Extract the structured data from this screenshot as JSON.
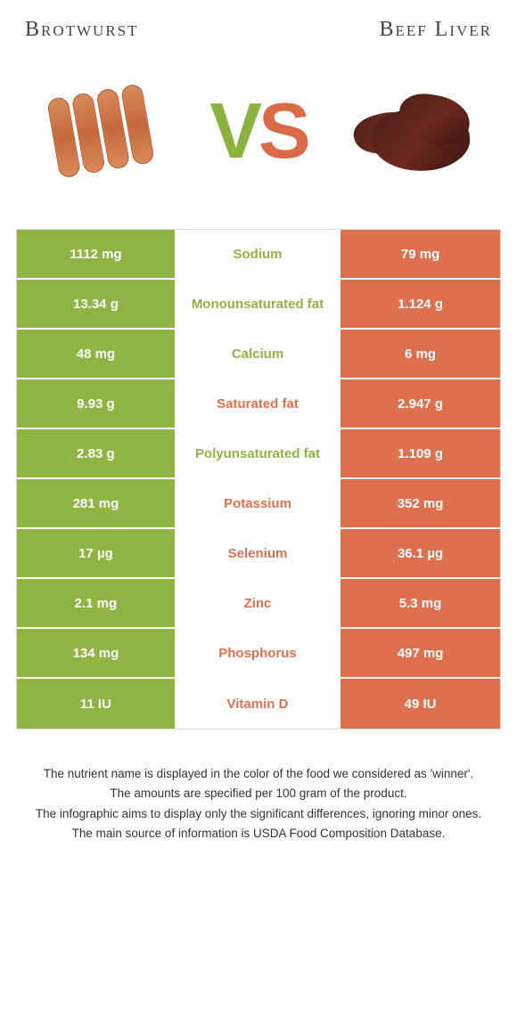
{
  "colors": {
    "green": "#8fb444",
    "orange": "#dd714f",
    "mid_green_text": "#8fb444",
    "mid_orange_text": "#dd714f"
  },
  "food_a": {
    "title": "Brotwurst"
  },
  "food_b": {
    "title": "Beef Liver"
  },
  "vs": {
    "v": "V",
    "s": "S"
  },
  "rows": [
    {
      "nutrient": "Sodium",
      "a": "1112 mg",
      "b": "79 mg",
      "winner": "a"
    },
    {
      "nutrient": "Monounsaturated fat",
      "a": "13.34 g",
      "b": "1.124 g",
      "winner": "a"
    },
    {
      "nutrient": "Calcium",
      "a": "48 mg",
      "b": "6 mg",
      "winner": "a"
    },
    {
      "nutrient": "Saturated fat",
      "a": "9.93 g",
      "b": "2.947 g",
      "winner": "b"
    },
    {
      "nutrient": "Polyunsaturated fat",
      "a": "2.83 g",
      "b": "1.109 g",
      "winner": "a"
    },
    {
      "nutrient": "Potassium",
      "a": "281 mg",
      "b": "352 mg",
      "winner": "b"
    },
    {
      "nutrient": "Selenium",
      "a": "17 µg",
      "b": "36.1 µg",
      "winner": "b"
    },
    {
      "nutrient": "Zinc",
      "a": "2.1 mg",
      "b": "5.3 mg",
      "winner": "b"
    },
    {
      "nutrient": "Phosphorus",
      "a": "134 mg",
      "b": "497 mg",
      "winner": "b"
    },
    {
      "nutrient": "Vitamin D",
      "a": "11 IU",
      "b": "49 IU",
      "winner": "b"
    }
  ],
  "footer": {
    "l1": "The nutrient name is displayed in the color of the food we considered as 'winner'.",
    "l2": "The amounts are specified per 100 gram of the product.",
    "l3": "The infographic aims to display only the significant differences, ignoring minor ones.",
    "l4": "The main source of information is USDA Food Composition Database."
  }
}
